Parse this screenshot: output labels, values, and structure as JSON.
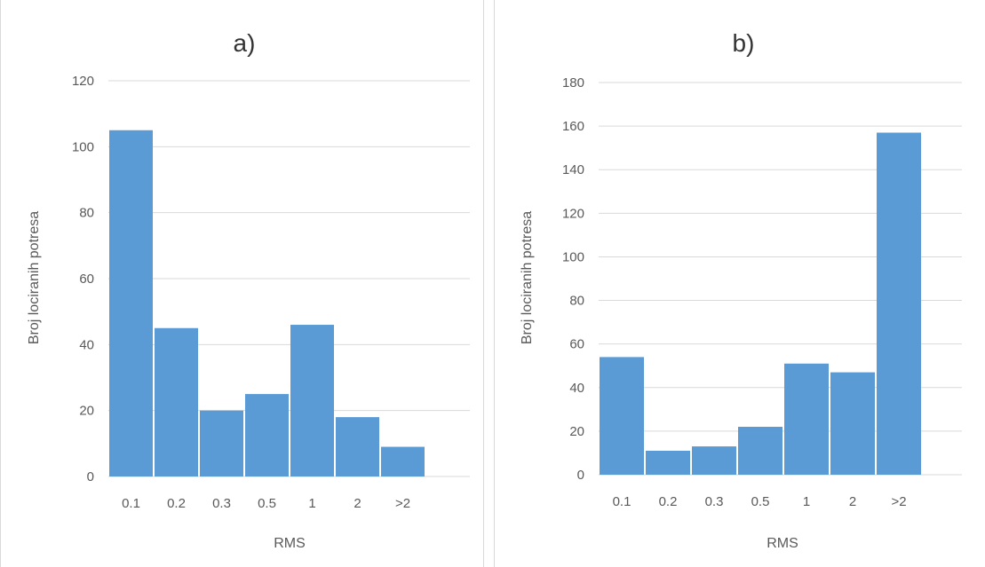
{
  "chart_data": [
    {
      "type": "bar",
      "title": "a)",
      "xlabel": "RMS",
      "ylabel": "Broj lociranih potresa",
      "categories": [
        "0.1",
        "0.2",
        "0.3",
        "0.5",
        "1",
        "2",
        ">2"
      ],
      "values": [
        105,
        45,
        20,
        25,
        46,
        18,
        9
      ],
      "ylim": [
        0,
        120
      ],
      "yticks": [
        "0",
        "20",
        "40",
        "60",
        "80",
        "100",
        "120"
      ],
      "grid": true,
      "bar_color": "#5b9bd5"
    },
    {
      "type": "bar",
      "title": "b)",
      "xlabel": "RMS",
      "ylabel": "Broj lociranih potresa",
      "categories": [
        "0.1",
        "0.2",
        "0.3",
        "0.5",
        "1",
        "2",
        ">2"
      ],
      "values": [
        54,
        11,
        13,
        22,
        51,
        47,
        157
      ],
      "ylim": [
        0,
        180
      ],
      "yticks": [
        "0",
        "20",
        "40",
        "60",
        "80",
        "100",
        "120",
        "140",
        "160",
        "180"
      ],
      "grid": true,
      "bar_color": "#5b9bd5"
    }
  ]
}
